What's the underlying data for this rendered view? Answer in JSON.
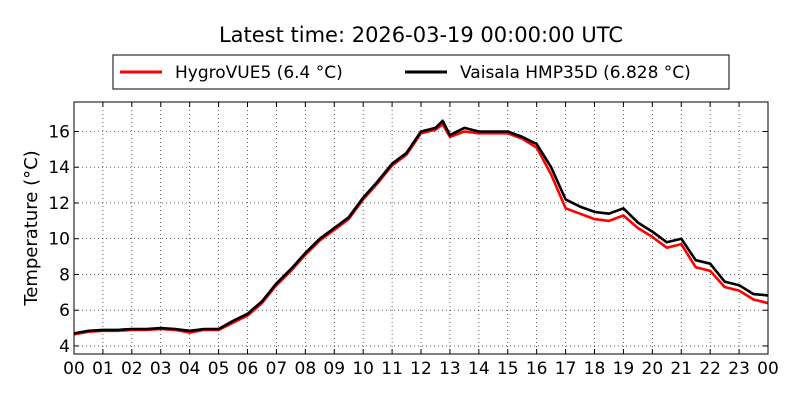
{
  "chart_data": {
    "type": "line",
    "title": "Latest time: 2026-03-19 00:00:00 UTC",
    "xlabel": "",
    "ylabel": "Temperature (°C)",
    "xlim": [
      0,
      24
    ],
    "ylim": [
      3.55,
      17.65
    ],
    "grid": true,
    "legend_position": "top-center",
    "x_tick_values": [
      0,
      1,
      2,
      3,
      4,
      5,
      6,
      7,
      8,
      9,
      10,
      11,
      12,
      13,
      14,
      15,
      16,
      17,
      18,
      19,
      20,
      21,
      22,
      23,
      24
    ],
    "x_tick_labels": [
      "00",
      "01",
      "02",
      "03",
      "04",
      "05",
      "06",
      "07",
      "08",
      "09",
      "10",
      "11",
      "12",
      "13",
      "14",
      "15",
      "16",
      "17",
      "18",
      "19",
      "20",
      "21",
      "22",
      "23",
      "00"
    ],
    "y_ticks": [
      4,
      6,
      8,
      10,
      12,
      14,
      16
    ],
    "x": [
      0,
      0.5,
      1,
      1.5,
      2,
      2.5,
      3,
      3.5,
      4,
      4.5,
      5,
      5.5,
      6,
      6.5,
      7,
      7.5,
      8,
      8.5,
      9,
      9.5,
      10,
      10.5,
      11,
      11.5,
      12,
      12.5,
      12.75,
      13,
      13.5,
      14,
      14.5,
      15,
      15.5,
      16,
      16.5,
      17,
      17.5,
      18,
      18.5,
      19,
      19.5,
      20,
      20.5,
      21,
      21.5,
      22,
      22.5,
      23,
      23.5,
      24
    ],
    "series": [
      {
        "name": "HygroVUE5 (6.4 °C)",
        "color": "#ff0000",
        "values": [
          4.65,
          4.8,
          4.85,
          4.85,
          4.9,
          4.9,
          4.95,
          4.9,
          4.75,
          4.9,
          4.9,
          5.3,
          5.7,
          6.4,
          7.4,
          8.2,
          9.1,
          9.9,
          10.5,
          11.1,
          12.2,
          13.1,
          14.1,
          14.7,
          15.9,
          16.1,
          16.4,
          15.7,
          16.0,
          15.9,
          15.9,
          15.9,
          15.6,
          15.1,
          13.6,
          11.7,
          11.4,
          11.1,
          11.0,
          11.3,
          10.6,
          10.1,
          9.5,
          9.7,
          8.4,
          8.2,
          7.3,
          7.1,
          6.6,
          6.4
        ]
      },
      {
        "name": "Vaisala HMP35D (6.828 °C)",
        "color": "#000000",
        "values": [
          4.7,
          4.85,
          4.9,
          4.9,
          4.95,
          4.95,
          5.0,
          4.95,
          4.85,
          4.95,
          4.95,
          5.4,
          5.8,
          6.5,
          7.5,
          8.3,
          9.2,
          10.0,
          10.6,
          11.2,
          12.3,
          13.2,
          14.2,
          14.8,
          16.0,
          16.2,
          16.6,
          15.8,
          16.2,
          16.0,
          16.0,
          16.0,
          15.7,
          15.3,
          14.0,
          12.2,
          11.8,
          11.5,
          11.4,
          11.7,
          10.9,
          10.4,
          9.8,
          10.0,
          8.8,
          8.6,
          7.6,
          7.4,
          6.9,
          6.83
        ]
      }
    ]
  }
}
